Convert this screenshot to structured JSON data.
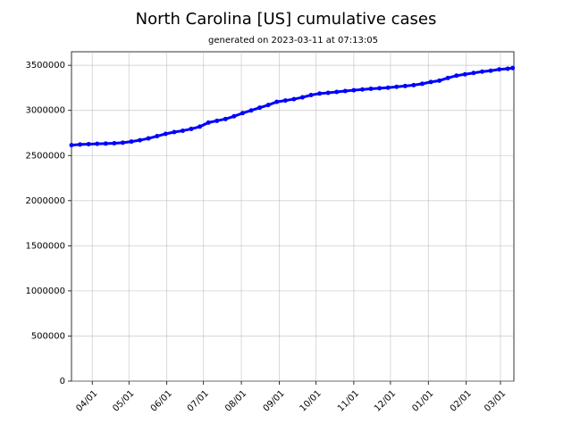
{
  "chart_data": {
    "type": "line",
    "title": "North Carolina [US] cumulative cases",
    "subtitle": "generated on 2023-03-11 at 07:13:05",
    "x": [
      "03/15",
      "03/22",
      "03/29",
      "04/05",
      "04/12",
      "04/19",
      "04/26",
      "05/03",
      "05/10",
      "05/17",
      "05/24",
      "05/31",
      "06/07",
      "06/14",
      "06/21",
      "06/28",
      "07/05",
      "07/12",
      "07/19",
      "07/26",
      "08/02",
      "08/09",
      "08/16",
      "08/23",
      "08/30",
      "09/06",
      "09/13",
      "09/20",
      "09/27",
      "10/04",
      "10/11",
      "10/18",
      "10/25",
      "11/01",
      "11/08",
      "11/15",
      "11/22",
      "11/29",
      "12/06",
      "12/13",
      "12/20",
      "12/27",
      "01/03",
      "01/10",
      "01/17",
      "01/24",
      "01/31",
      "02/07",
      "02/14",
      "02/21",
      "02/28",
      "03/07",
      "03/11"
    ],
    "series": [
      {
        "color": "#0000ff",
        "values": [
          2615000,
          2622000,
          2626000,
          2630000,
          2633000,
          2636000,
          2642000,
          2655000,
          2670000,
          2690000,
          2715000,
          2740000,
          2760000,
          2775000,
          2795000,
          2820000,
          2865000,
          2885000,
          2905000,
          2935000,
          2970000,
          3000000,
          3030000,
          3060000,
          3095000,
          3110000,
          3125000,
          3145000,
          3170000,
          3187000,
          3195000,
          3205000,
          3215000,
          3224000,
          3232000,
          3240000,
          3246000,
          3252000,
          3262000,
          3270000,
          3280000,
          3295000,
          3315000,
          3330000,
          3360000,
          3385000,
          3400000,
          3415000,
          3430000,
          3440000,
          3455000,
          3462000,
          3470000
        ]
      }
    ],
    "xlim": [
      "03/15",
      "03/12"
    ],
    "xticks": [
      "04/01",
      "05/01",
      "06/01",
      "07/01",
      "08/01",
      "09/01",
      "10/01",
      "11/01",
      "12/01",
      "01/01",
      "02/01",
      "03/01"
    ],
    "ylim": [
      0,
      3650000
    ],
    "yticks": [
      0,
      500000,
      1000000,
      1500000,
      2000000,
      2500000,
      3000000,
      3500000
    ],
    "grid": true
  }
}
